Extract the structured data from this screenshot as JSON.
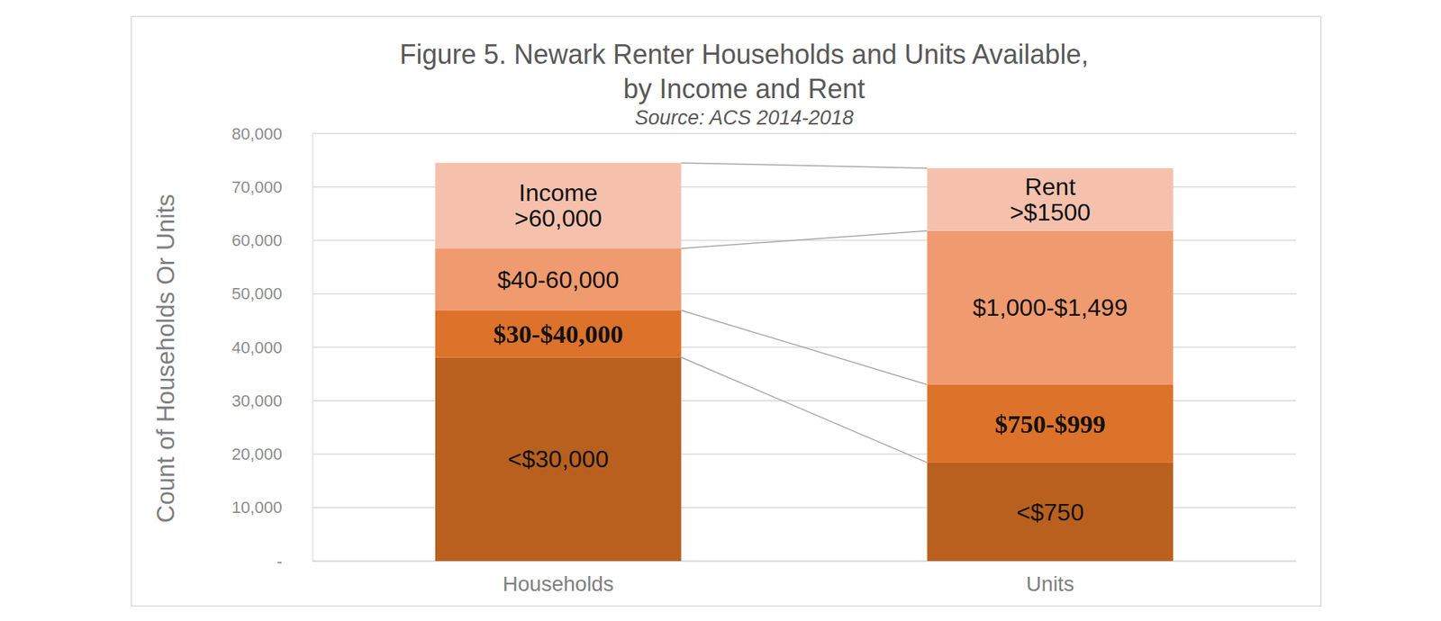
{
  "chart_data": {
    "type": "bar",
    "stacked": true,
    "grid": true,
    "title": [
      "Figure 5. Newark Renter Households and Units Available,",
      "by Income and Rent"
    ],
    "subtitle": "Source: ACS 2014-2018",
    "y_label": "Count of Households Or Units",
    "categories": [
      "Households",
      "Units"
    ],
    "series": [
      {
        "color": "#b9601f",
        "values": [
          38100,
          18400
        ],
        "labels": [
          [
            "<$30,000"
          ],
          [
            "<$750"
          ]
        ]
      },
      {
        "color": "#dd722b",
        "values": [
          8800,
          14600
        ],
        "labels": [
          [
            "$30-$40,000"
          ],
          [
            "$750-$999"
          ]
        ]
      },
      {
        "color": "#f09a70",
        "values": [
          11600,
          28800
        ],
        "labels": [
          [
            "$40-60,000"
          ],
          [
            "$1,000-$1,499"
          ]
        ]
      },
      {
        "color": "#f5c1ad",
        "values": [
          16000,
          11700
        ],
        "labels": [
          [
            "Income",
            ">60,000"
          ],
          [
            "Rent",
            ">$1500"
          ]
        ]
      }
    ],
    "ylim": [
      0,
      80000
    ],
    "yticks": [
      {
        "value": 0,
        "label": "-"
      },
      {
        "value": 10000,
        "label": "10,000"
      },
      {
        "value": 20000,
        "label": "20,000"
      },
      {
        "value": 30000,
        "label": "30,000"
      },
      {
        "value": 40000,
        "label": "40,000"
      },
      {
        "value": 50000,
        "label": "50,000"
      },
      {
        "value": 60000,
        "label": "60,000"
      },
      {
        "value": 70000,
        "label": "70,000"
      },
      {
        "value": 80000,
        "label": "80,000"
      }
    ]
  }
}
